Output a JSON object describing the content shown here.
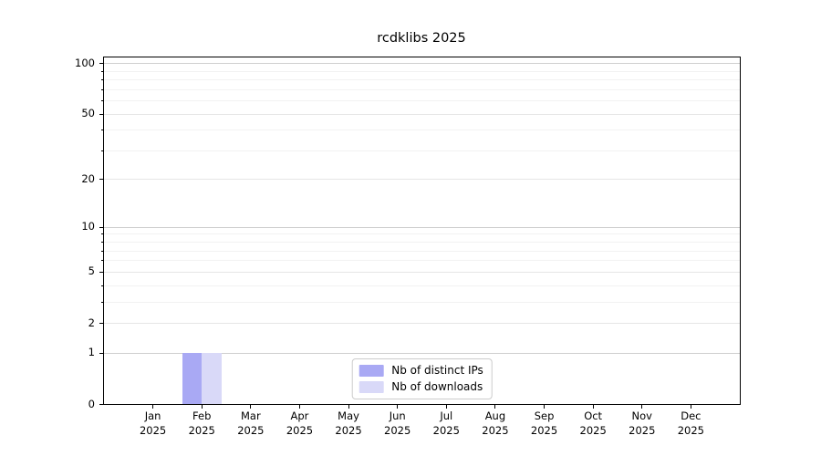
{
  "chart_data": {
    "type": "bar",
    "title": "rcdklibs 2025",
    "year": "2025",
    "categories": [
      "Jan",
      "Feb",
      "Mar",
      "Apr",
      "May",
      "Jun",
      "Jul",
      "Aug",
      "Sep",
      "Oct",
      "Nov",
      "Dec"
    ],
    "series": [
      {
        "name": "Nb of distinct IPs",
        "color": "#a9a9f4",
        "values": [
          0,
          1,
          0,
          0,
          0,
          0,
          0,
          0,
          0,
          0,
          0,
          0
        ]
      },
      {
        "name": "Nb of downloads",
        "color": "#d9d9f8",
        "values": [
          0,
          1,
          0,
          0,
          0,
          0,
          0,
          0,
          0,
          0,
          0,
          0
        ]
      }
    ],
    "xlabel": "",
    "ylabel": "",
    "yscale": "log1p",
    "ylim": [
      0,
      108
    ],
    "y_major_ticks": [
      0,
      1,
      2,
      5,
      10,
      20,
      50,
      100
    ],
    "y_minor_ticks": [
      3,
      4,
      6,
      7,
      8,
      9,
      30,
      40,
      60,
      70,
      80,
      90
    ],
    "grid": true,
    "legend_position": "lower center"
  }
}
